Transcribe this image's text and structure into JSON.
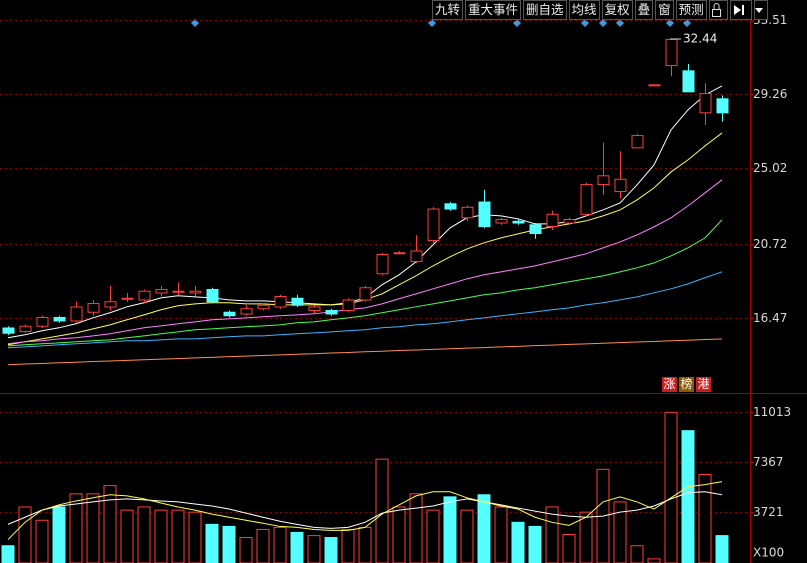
{
  "toolbar": [
    "九转",
    "重大事件",
    "删自选",
    "均线",
    "复权",
    "叠",
    "窗",
    "预测"
  ],
  "badges": [
    "涨",
    "榜",
    "港"
  ],
  "chart_data": [
    {
      "type": "candlestick",
      "up_color": "#ff3c3c",
      "down_color": "#54ffff",
      "open": [
        15.9,
        15.7,
        16.0,
        16.5,
        16.3,
        16.8,
        17.1,
        17.6,
        17.5,
        17.9,
        18.0,
        17.9,
        18.1,
        16.8,
        16.7,
        17.0,
        17.1,
        17.6,
        16.9,
        16.9,
        16.9,
        17.5,
        19.0,
        20.2,
        19.7,
        20.9,
        23.0,
        22.2,
        23.1,
        21.9,
        22.0,
        21.8,
        21.7,
        21.9,
        22.4,
        24.1,
        23.7,
        26.2,
        29.8,
        30.9,
        30.6,
        28.2,
        29.0
      ],
      "high": [
        16.0,
        16.1,
        16.6,
        16.6,
        17.4,
        17.5,
        18.3,
        17.9,
        18.1,
        18.3,
        18.5,
        18.3,
        18.2,
        16.9,
        17.2,
        17.3,
        17.8,
        17.8,
        17.2,
        17.0,
        17.6,
        18.3,
        20.2,
        20.3,
        21.2,
        22.8,
        23.1,
        22.9,
        23.8,
        22.2,
        22.1,
        21.9,
        22.6,
        22.2,
        24.2,
        26.5,
        26.0,
        27.0,
        29.8,
        32.44,
        31.0,
        29.9,
        29.2
      ],
      "low": [
        15.5,
        15.6,
        15.9,
        16.2,
        16.2,
        16.6,
        16.9,
        17.4,
        17.3,
        17.7,
        17.8,
        17.7,
        17.3,
        16.5,
        16.6,
        16.9,
        17.0,
        17.1,
        16.7,
        16.6,
        16.8,
        17.4,
        18.9,
        20.1,
        19.6,
        20.7,
        22.6,
        22.0,
        21.6,
        21.8,
        21.8,
        21.0,
        21.5,
        21.8,
        22.3,
        23.5,
        23.3,
        26.2,
        29.8,
        30.3,
        29.4,
        27.5,
        27.7
      ],
      "close": [
        15.6,
        16.0,
        16.5,
        16.3,
        17.1,
        17.3,
        17.4,
        17.6,
        18.0,
        18.1,
        18.0,
        18.0,
        17.4,
        16.6,
        17.0,
        17.2,
        17.7,
        17.2,
        17.1,
        16.7,
        17.5,
        18.2,
        20.1,
        20.2,
        20.3,
        22.7,
        22.7,
        22.8,
        21.7,
        22.1,
        21.9,
        21.3,
        22.4,
        22.1,
        24.1,
        24.6,
        24.4,
        26.9,
        29.8,
        32.4,
        29.4,
        29.3,
        28.2
      ],
      "series": [
        {
          "color": "#ffffff",
          "values": [
            15.34,
            15.51,
            15.74,
            15.91,
            16.14,
            16.48,
            16.77,
            17.11,
            17.34,
            17.62,
            17.74,
            17.68,
            17.62,
            17.51,
            17.45,
            17.45,
            17.4,
            17.34,
            17.28,
            17.22,
            17.34,
            17.62,
            18.37,
            18.94,
            19.68,
            20.65,
            21.62,
            22.2,
            22.37,
            22.31,
            22.14,
            21.85,
            21.85,
            21.97,
            22.31,
            22.65,
            23.05,
            24.08,
            25.22,
            27.22,
            28.37,
            29.22,
            29.74
          ]
        },
        {
          "color": "#ffff4c",
          "values": [
            14.94,
            15.11,
            15.28,
            15.45,
            15.62,
            15.85,
            16.08,
            16.37,
            16.65,
            16.94,
            17.17,
            17.28,
            17.34,
            17.34,
            17.28,
            17.28,
            17.22,
            17.22,
            17.22,
            17.22,
            17.28,
            17.51,
            17.85,
            18.37,
            18.88,
            19.45,
            19.97,
            20.42,
            20.77,
            21.05,
            21.28,
            21.51,
            21.68,
            21.85,
            22.02,
            22.31,
            22.65,
            23.22,
            23.91,
            24.82,
            25.51,
            26.31,
            27.05
          ]
        },
        {
          "color": "#ff80ff",
          "values": [
            15.0,
            15.11,
            15.17,
            15.28,
            15.34,
            15.45,
            15.57,
            15.74,
            15.91,
            16.02,
            16.14,
            16.25,
            16.37,
            16.42,
            16.48,
            16.54,
            16.6,
            16.65,
            16.71,
            16.82,
            16.94,
            17.05,
            17.28,
            17.57,
            17.85,
            18.14,
            18.42,
            18.71,
            18.94,
            19.11,
            19.28,
            19.45,
            19.68,
            19.91,
            20.14,
            20.48,
            20.82,
            21.22,
            21.68,
            22.2,
            22.88,
            23.62,
            24.37
          ]
        },
        {
          "color": "#4cff4c",
          "values": [
            14.88,
            14.94,
            15.0,
            15.05,
            15.11,
            15.17,
            15.22,
            15.34,
            15.45,
            15.57,
            15.68,
            15.8,
            15.85,
            15.91,
            15.97,
            16.02,
            16.08,
            16.2,
            16.25,
            16.37,
            16.48,
            16.6,
            16.77,
            16.94,
            17.11,
            17.28,
            17.45,
            17.62,
            17.8,
            17.91,
            18.08,
            18.2,
            18.37,
            18.54,
            18.71,
            18.88,
            19.11,
            19.34,
            19.62,
            20.02,
            20.48,
            21.05,
            22.08
          ]
        },
        {
          "color": "#3cb4ff",
          "values": [
            14.77,
            14.82,
            14.88,
            14.94,
            15.0,
            15.05,
            15.11,
            15.17,
            15.17,
            15.22,
            15.28,
            15.28,
            15.34,
            15.4,
            15.45,
            15.45,
            15.51,
            15.57,
            15.62,
            15.68,
            15.74,
            15.8,
            15.91,
            15.97,
            16.08,
            16.14,
            16.25,
            16.37,
            16.48,
            16.6,
            16.71,
            16.82,
            16.94,
            17.05,
            17.22,
            17.34,
            17.51,
            17.68,
            17.91,
            18.14,
            18.42,
            18.77,
            19.11
          ]
        },
        {
          "color": "#ff8c50",
          "values": [
            13.8,
            13.84,
            13.87,
            13.91,
            13.94,
            13.98,
            14.01,
            14.05,
            14.08,
            14.12,
            14.15,
            14.19,
            14.22,
            14.26,
            14.29,
            14.33,
            14.36,
            14.4,
            14.43,
            14.47,
            14.5,
            14.54,
            14.57,
            14.61,
            14.64,
            14.68,
            14.71,
            14.75,
            14.78,
            14.82,
            14.85,
            14.89,
            14.92,
            14.96,
            14.99,
            15.03,
            15.06,
            15.1,
            15.13,
            15.17,
            15.2,
            15.24,
            15.27
          ]
        }
      ],
      "ylim": [
        12.24,
        34.65
      ],
      "yticks": [
        33.51,
        29.26,
        25.02,
        20.72,
        16.47
      ],
      "grid": true
    },
    {
      "type": "bar",
      "values": [
        1260,
        4090,
        3120,
        4090,
        5050,
        5050,
        5650,
        3860,
        4090,
        3860,
        3860,
        3710,
        2820,
        2670,
        1860,
        2450,
        2600,
        2230,
        2000,
        1860,
        2450,
        2600,
        7580,
        4090,
        5050,
        3860,
        4830,
        3860,
        4980,
        4090,
        2970,
        2670,
        4090,
        2080,
        3710,
        6840,
        4460,
        1260,
        300,
        11000,
        9660,
        6460,
        2000
      ],
      "series": [
        {
          "color": "#ffffff",
          "values": [
            2820,
            3340,
            3860,
            4160,
            4310,
            4460,
            4610,
            4680,
            4610,
            4530,
            4460,
            4310,
            4160,
            3940,
            3640,
            3340,
            3050,
            2820,
            2600,
            2530,
            2600,
            2970,
            3640,
            3860,
            4010,
            4160,
            4460,
            4680,
            4460,
            4240,
            4010,
            3790,
            3570,
            3420,
            3340,
            3420,
            3710,
            3860,
            4160,
            4680,
            5130,
            5200,
            4980
          ]
        },
        {
          "color": "#ffff4c",
          "values": [
            1710,
            2970,
            3860,
            4240,
            4530,
            4760,
            4980,
            4900,
            4680,
            4380,
            4090,
            3860,
            3570,
            3340,
            3120,
            2900,
            2670,
            2600,
            2450,
            2380,
            2380,
            2600,
            3570,
            4240,
            4900,
            5200,
            5200,
            4760,
            4460,
            4160,
            3940,
            3340,
            2970,
            2750,
            3340,
            4460,
            4830,
            4460,
            3940,
            4760,
            5570,
            5720,
            5940
          ]
        }
      ],
      "unit_label": "X100",
      "ylim": [
        0,
        12265
      ],
      "yticks": [
        3721,
        7367,
        11013
      ],
      "grid": true
    }
  ]
}
